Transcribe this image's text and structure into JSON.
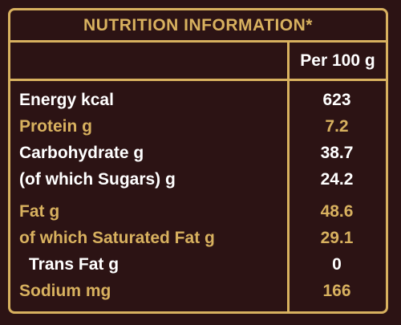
{
  "title": "NUTRITION INFORMATION*",
  "column_header": "Per 100 g",
  "rows": [
    {
      "label": "Energy kcal",
      "value": "623"
    },
    {
      "label": "Protein g",
      "value": "7.2"
    },
    {
      "label": "Carbohydrate g",
      "value": "38.7"
    },
    {
      "label": "(of which Sugars) g",
      "value": "24.2"
    },
    {
      "label": "Fat g",
      "value": "48.6"
    },
    {
      "label": "of which Saturated Fat g",
      "value": "29.1"
    },
    {
      "label": "Trans Fat g",
      "value": "0"
    },
    {
      "label": "Sodium mg",
      "value": "166"
    }
  ],
  "colors": {
    "background": "#2c1314",
    "gold": "#d8b15f",
    "white": "#ffffff"
  }
}
